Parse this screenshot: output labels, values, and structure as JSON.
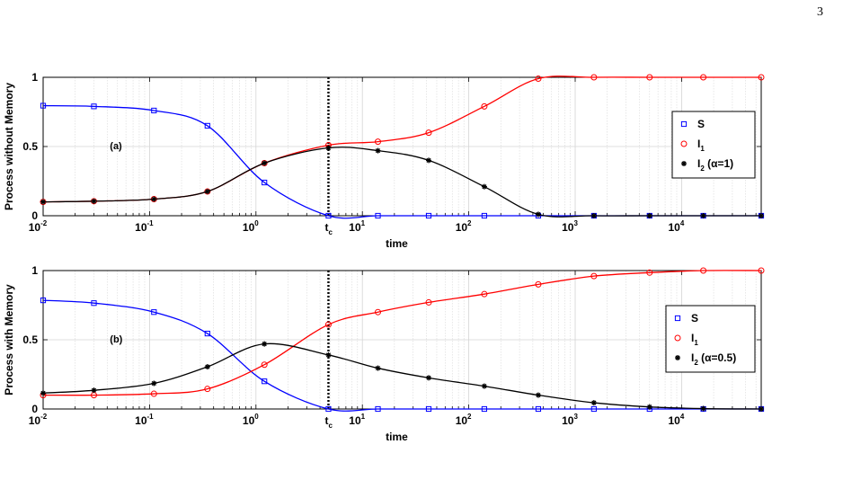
{
  "page_number": "3",
  "colors": {
    "S": "#0000ff",
    "I1": "#ff0000",
    "I2": "#000000"
  },
  "chart_data": [
    {
      "type": "line",
      "xscale": "log",
      "xlim": [
        0.01,
        56000
      ],
      "ylim": [
        0,
        1
      ],
      "xlabel": "time",
      "ylabel": "Process without Memory",
      "panel_label": "(a)",
      "tc_label": "t",
      "tc_sub": "c",
      "tc": 4.8,
      "yticks": [
        "0",
        "0.5",
        "1"
      ],
      "xtick_base": "10",
      "xtick_exponents": [
        "-2",
        "-1",
        "0",
        "1",
        "2",
        "3",
        "4"
      ],
      "grid": true,
      "legend_placement": "right",
      "series": [
        {
          "name": "S",
          "name_sub": "",
          "name_suffix": "",
          "marker": "square",
          "color": "#0000ff",
          "x": [
            0.01,
            0.03,
            0.11,
            0.35,
            1.2,
            4.8,
            14,
            42,
            140,
            450,
            1500,
            5000,
            16000,
            56000
          ],
          "y": [
            0.795,
            0.79,
            0.76,
            0.65,
            0.24,
            0.0,
            0.0,
            0.0,
            0.0,
            0.0,
            0.0,
            0.0,
            0.0,
            0.0
          ]
        },
        {
          "name": "I",
          "name_sub": "1",
          "name_suffix": "",
          "marker": "circle",
          "color": "#ff0000",
          "x": [
            0.01,
            0.03,
            0.11,
            0.35,
            1.2,
            4.8,
            14,
            42,
            140,
            450,
            1500,
            5000,
            16000,
            56000
          ],
          "y": [
            0.1,
            0.105,
            0.12,
            0.175,
            0.38,
            0.51,
            0.535,
            0.6,
            0.79,
            0.99,
            1.0,
            1.0,
            1.0,
            1.0
          ]
        },
        {
          "name": "I",
          "name_sub": "2",
          "name_suffix": " (α=1)",
          "marker": "star",
          "color": "#000000",
          "x": [
            0.01,
            0.03,
            0.11,
            0.35,
            1.2,
            4.8,
            14,
            42,
            140,
            450,
            1500,
            5000,
            16000,
            56000
          ],
          "y": [
            0.1,
            0.105,
            0.12,
            0.175,
            0.38,
            0.49,
            0.47,
            0.4,
            0.21,
            0.01,
            0.0,
            0.0,
            0.0,
            0.0
          ]
        }
      ]
    },
    {
      "type": "line",
      "xscale": "log",
      "xlim": [
        0.01,
        56000
      ],
      "ylim": [
        0,
        1
      ],
      "xlabel": "time",
      "ylabel": "Process with Memory",
      "panel_label": "(b)",
      "tc_label": "t",
      "tc_sub": "c",
      "tc": 4.8,
      "yticks": [
        "0",
        "0.5",
        "1"
      ],
      "xtick_base": "10",
      "xtick_exponents": [
        "-2",
        "-1",
        "0",
        "1",
        "2",
        "3",
        "4"
      ],
      "grid": true,
      "legend_placement": "right",
      "series": [
        {
          "name": "S",
          "name_sub": "",
          "name_suffix": "",
          "marker": "square",
          "color": "#0000ff",
          "x": [
            0.01,
            0.03,
            0.11,
            0.35,
            1.2,
            4.8,
            14,
            42,
            140,
            450,
            1500,
            5000,
            16000,
            56000
          ],
          "y": [
            0.785,
            0.765,
            0.7,
            0.545,
            0.2,
            0.0,
            0.0,
            0.0,
            0.0,
            0.0,
            0.0,
            0.0,
            0.0,
            0.0
          ]
        },
        {
          "name": "I",
          "name_sub": "1",
          "name_suffix": "",
          "marker": "circle",
          "color": "#ff0000",
          "x": [
            0.01,
            0.03,
            0.11,
            0.35,
            1.2,
            4.8,
            14,
            42,
            140,
            450,
            1500,
            5000,
            16000,
            56000
          ],
          "y": [
            0.1,
            0.1,
            0.11,
            0.145,
            0.32,
            0.61,
            0.7,
            0.77,
            0.83,
            0.9,
            0.96,
            0.985,
            1.0,
            1.0
          ]
        },
        {
          "name": "I",
          "name_sub": "2",
          "name_suffix": " (α=0.5)",
          "marker": "star",
          "color": "#000000",
          "x": [
            0.01,
            0.03,
            0.11,
            0.35,
            1.2,
            4.8,
            14,
            42,
            140,
            450,
            1500,
            5000,
            16000,
            56000
          ],
          "y": [
            0.115,
            0.135,
            0.185,
            0.305,
            0.47,
            0.39,
            0.295,
            0.225,
            0.165,
            0.1,
            0.045,
            0.015,
            0.003,
            0.0
          ]
        }
      ]
    }
  ]
}
